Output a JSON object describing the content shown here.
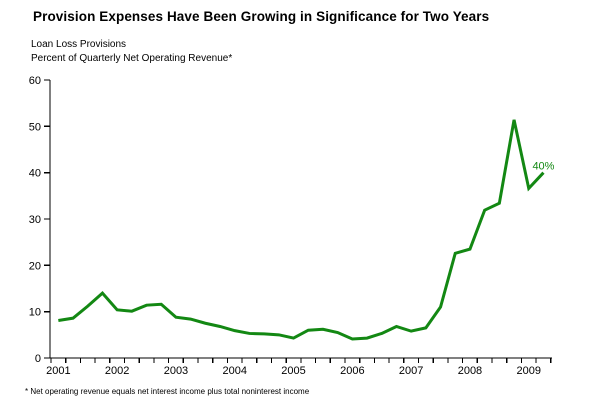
{
  "header": {
    "title": "Provision Expenses Have Been Growing in Significance for Two Years",
    "subtitle_line1": "Loan Loss Provisions",
    "subtitle_line2": "Percent of Quarterly Net Operating Revenue*"
  },
  "footnote": "* Net operating revenue equals net interest income plus total noninterest income",
  "colors": {
    "line": "#138813",
    "axis": "#000000",
    "text": "#000000",
    "annotation": "#138813",
    "background": "#ffffff"
  },
  "chart_data": {
    "type": "line",
    "title": "Loan Loss Provisions",
    "ylabel": "Percent of Quarterly Net Operating Revenue*",
    "xlabel": "",
    "ylim": [
      0,
      60
    ],
    "y_ticks": [
      0,
      10,
      20,
      30,
      40,
      50,
      60
    ],
    "x_tick_labels": [
      "2001",
      "2002",
      "2003",
      "2004",
      "2005",
      "2006",
      "2007",
      "2008",
      "2009"
    ],
    "grid": false,
    "legend_position": "none",
    "x": [
      "2001Q1",
      "2001Q2",
      "2001Q3",
      "2001Q4",
      "2002Q1",
      "2002Q2",
      "2002Q3",
      "2002Q4",
      "2003Q1",
      "2003Q2",
      "2003Q3",
      "2003Q4",
      "2004Q1",
      "2004Q2",
      "2004Q3",
      "2004Q4",
      "2005Q1",
      "2005Q2",
      "2005Q3",
      "2005Q4",
      "2006Q1",
      "2006Q2",
      "2006Q3",
      "2006Q4",
      "2007Q1",
      "2007Q2",
      "2007Q3",
      "2007Q4",
      "2008Q1",
      "2008Q2",
      "2008Q3",
      "2008Q4",
      "2009Q1",
      "2009Q2"
    ],
    "series": [
      {
        "name": "Loan Loss Provisions (percent of quarterly net operating revenue)",
        "color": "#138813",
        "values": [
          8.1,
          8.6,
          11.2,
          14.0,
          10.4,
          10.1,
          11.4,
          11.6,
          8.8,
          8.4,
          7.5,
          6.8,
          5.9,
          5.3,
          5.2,
          5.0,
          4.3,
          6.0,
          6.2,
          5.5,
          4.1,
          4.3,
          5.3,
          6.8,
          5.8,
          6.5,
          11.0,
          22.6,
          23.5,
          31.9,
          33.4,
          51.4,
          36.6,
          40.0
        ]
      }
    ],
    "annotation": {
      "text": "40%",
      "point_index": 33
    }
  }
}
